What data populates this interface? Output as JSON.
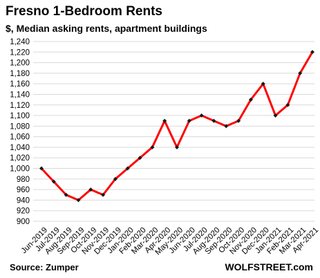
{
  "title": "Fresno 1-Bedroom Rents",
  "subtitle": "$, Median asking rents, apartment buildings",
  "source": "Source: Zumper",
  "brand": "WOLFSTREET.com",
  "colors": {
    "line": "#ff0000",
    "marker": "#1a1a1a",
    "grid": "#d9d9d9"
  },
  "chart_data": {
    "type": "line",
    "title": "Fresno 1-Bedroom Rents",
    "subtitle": "$, Median asking rents, apartment buildings",
    "xlabel": "",
    "ylabel": "",
    "ylim": [
      900,
      1240
    ],
    "yticks": [
      900,
      920,
      940,
      960,
      980,
      1000,
      1020,
      1040,
      1060,
      1080,
      1100,
      1120,
      1140,
      1160,
      1180,
      1200,
      1220,
      1240
    ],
    "grid": true,
    "legend": "none",
    "categories": [
      "Jun-2019",
      "Jul-2019",
      "Aug-2019",
      "Sep-2019",
      "Oct-2019",
      "Nov-2019",
      "Dec-2019",
      "Jan-2020",
      "Feb-2020",
      "Mar-2020",
      "Apr-2020",
      "May-2020",
      "Jun-2020",
      "Jul-2020",
      "Aug-2020",
      "Sep-2020",
      "Oct-2020",
      "Nov-2020",
      "Dec-2020",
      "Jan-2021",
      "Feb-2021",
      "Mar-2021",
      "Apr-2021"
    ],
    "series": [
      {
        "values": [
          1000,
          975,
          950,
          940,
          960,
          950,
          980,
          1000,
          1020,
          1040,
          1090,
          1040,
          1090,
          1100,
          1090,
          1080,
          1090,
          1130,
          1160,
          1100,
          1120,
          1180,
          1220
        ]
      }
    ]
  }
}
